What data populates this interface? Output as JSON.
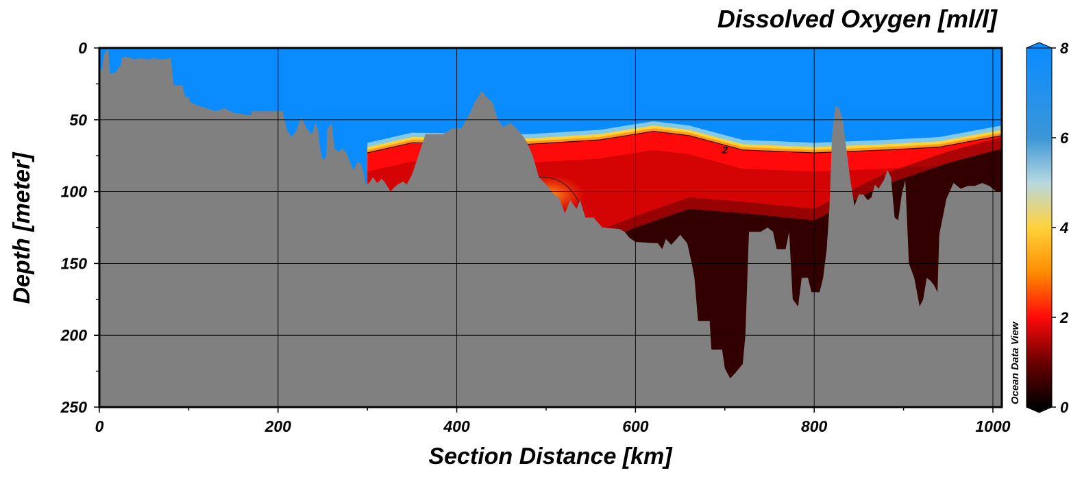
{
  "chart_data": {
    "type": "heatmap",
    "title": "Dissolved Oxygen [ml/l]",
    "xlabel": "Section Distance [km]",
    "ylabel": "Depth [meter]",
    "xlim": [
      0,
      1010
    ],
    "ylim": [
      250,
      0
    ],
    "x_ticks": [
      "0",
      "200",
      "400",
      "600",
      "800",
      "1000"
    ],
    "y_ticks": [
      "0",
      "50",
      "100",
      "150",
      "200",
      "250"
    ],
    "grid": true,
    "watermark": "Ocean Data View",
    "colorbar": {
      "range": [
        0,
        8
      ],
      "ticks": [
        "8",
        "6",
        "4",
        "2",
        "0"
      ],
      "stops": [
        {
          "value": 0,
          "color": "#000000"
        },
        {
          "value": 1,
          "color": "#6b0000"
        },
        {
          "value": 2,
          "color": "#ff0a0a"
        },
        {
          "value": 3,
          "color": "#ff8c00"
        },
        {
          "value": 4,
          "color": "#ffd23a"
        },
        {
          "value": 5,
          "color": "#b7d9e0"
        },
        {
          "value": 6,
          "color": "#3c96d8"
        },
        {
          "value": 8,
          "color": "#0a8cff"
        }
      ]
    },
    "contour_labels": [
      {
        "x": 700,
        "y": 71,
        "text": "2"
      }
    ],
    "layers": {
      "surface_oxygen_ml_l": 7.6,
      "oxycline_top_depth_m": [
        [
          300,
          72
        ],
        [
          350,
          65
        ],
        [
          480,
          66
        ],
        [
          560,
          63
        ],
        [
          620,
          57
        ],
        [
          660,
          60
        ],
        [
          720,
          70
        ],
        [
          800,
          72
        ],
        [
          880,
          70
        ],
        [
          940,
          68
        ],
        [
          1010,
          60
        ]
      ],
      "suboxic_top_depth_m": [
        [
          560,
          135
        ],
        [
          600,
          125
        ],
        [
          660,
          112
        ],
        [
          720,
          115
        ],
        [
          800,
          120
        ],
        [
          880,
          95
        ],
        [
          950,
          80
        ],
        [
          1010,
          70
        ]
      ]
    },
    "seafloor_depth_m": [
      [
        0,
        15
      ],
      [
        3,
        15
      ],
      [
        5,
        5
      ],
      [
        10,
        0
      ],
      [
        12,
        18
      ],
      [
        18,
        17
      ],
      [
        24,
        12
      ],
      [
        25,
        7
      ],
      [
        30,
        6
      ],
      [
        40,
        8
      ],
      [
        45,
        7
      ],
      [
        55,
        8
      ],
      [
        60,
        7
      ],
      [
        70,
        8
      ],
      [
        80,
        7
      ],
      [
        83,
        26
      ],
      [
        93,
        26
      ],
      [
        96,
        34
      ],
      [
        100,
        34
      ],
      [
        102,
        38
      ],
      [
        110,
        40
      ],
      [
        120,
        42
      ],
      [
        130,
        44
      ],
      [
        140,
        42
      ],
      [
        150,
        45
      ],
      [
        160,
        46
      ],
      [
        170,
        47
      ],
      [
        170,
        44
      ],
      [
        185,
        44
      ],
      [
        205,
        44
      ],
      [
        210,
        57
      ],
      [
        215,
        62
      ],
      [
        220,
        58
      ],
      [
        226,
        48
      ],
      [
        232,
        56
      ],
      [
        238,
        60
      ],
      [
        242,
        52
      ],
      [
        245,
        58
      ],
      [
        247,
        70
      ],
      [
        250,
        78
      ],
      [
        254,
        76
      ],
      [
        255,
        57
      ],
      [
        260,
        52
      ],
      [
        263,
        70
      ],
      [
        268,
        72
      ],
      [
        272,
        70
      ],
      [
        275,
        72
      ],
      [
        278,
        75
      ],
      [
        282,
        82
      ],
      [
        285,
        85
      ],
      [
        288,
        80
      ],
      [
        292,
        80
      ],
      [
        295,
        85
      ],
      [
        298,
        95
      ],
      [
        302,
        94
      ],
      [
        306,
        90
      ],
      [
        311,
        94
      ],
      [
        316,
        91
      ],
      [
        320,
        94
      ],
      [
        326,
        100
      ],
      [
        330,
        97
      ],
      [
        334,
        95
      ],
      [
        340,
        93
      ],
      [
        344,
        95
      ],
      [
        350,
        88
      ],
      [
        357,
        75
      ],
      [
        365,
        60
      ],
      [
        375,
        60
      ],
      [
        385,
        60
      ],
      [
        395,
        56
      ],
      [
        405,
        56
      ],
      [
        415,
        45
      ],
      [
        420,
        38
      ],
      [
        428,
        30
      ],
      [
        433,
        34
      ],
      [
        440,
        38
      ],
      [
        446,
        50
      ],
      [
        452,
        55
      ],
      [
        460,
        52
      ],
      [
        470,
        58
      ],
      [
        478,
        65
      ],
      [
        485,
        75
      ],
      [
        492,
        90
      ],
      [
        500,
        95
      ],
      [
        506,
        100
      ],
      [
        515,
        105
      ],
      [
        521,
        115
      ],
      [
        527,
        106
      ],
      [
        534,
        112
      ],
      [
        538,
        106
      ],
      [
        544,
        118
      ],
      [
        553,
        118
      ],
      [
        563,
        125
      ],
      [
        582,
        126
      ],
      [
        588,
        128
      ],
      [
        593,
        132
      ],
      [
        600,
        135
      ],
      [
        625,
        136
      ],
      [
        630,
        140
      ],
      [
        634,
        133
      ],
      [
        640,
        137
      ],
      [
        646,
        133
      ],
      [
        650,
        130
      ],
      [
        658,
        136
      ],
      [
        663,
        150
      ],
      [
        666,
        160
      ],
      [
        670,
        190
      ],
      [
        683,
        190
      ],
      [
        685,
        210
      ],
      [
        697,
        210
      ],
      [
        700,
        223
      ],
      [
        706,
        230
      ],
      [
        712,
        226
      ],
      [
        720,
        220
      ],
      [
        723,
        200
      ],
      [
        727,
        128
      ],
      [
        740,
        128
      ],
      [
        748,
        125
      ],
      [
        754,
        128
      ],
      [
        758,
        140
      ],
      [
        768,
        140
      ],
      [
        772,
        128
      ],
      [
        776,
        175
      ],
      [
        782,
        180
      ],
      [
        786,
        160
      ],
      [
        793,
        160
      ],
      [
        797,
        170
      ],
      [
        806,
        170
      ],
      [
        810,
        160
      ],
      [
        814,
        140
      ],
      [
        817,
        112
      ],
      [
        820,
        60
      ],
      [
        824,
        40
      ],
      [
        828,
        42
      ],
      [
        832,
        50
      ],
      [
        836,
        70
      ],
      [
        840,
        90
      ],
      [
        845,
        110
      ],
      [
        850,
        102
      ],
      [
        855,
        102
      ],
      [
        860,
        106
      ],
      [
        864,
        104
      ],
      [
        868,
        95
      ],
      [
        872,
        98
      ],
      [
        878,
        92
      ],
      [
        882,
        85
      ],
      [
        886,
        90
      ],
      [
        890,
        118
      ],
      [
        894,
        120
      ],
      [
        898,
        102
      ],
      [
        902,
        92
      ],
      [
        906,
        150
      ],
      [
        912,
        160
      ],
      [
        918,
        180
      ],
      [
        922,
        175
      ],
      [
        926,
        160
      ],
      [
        930,
        162
      ],
      [
        934,
        165
      ],
      [
        938,
        170
      ],
      [
        940,
        130
      ],
      [
        948,
        105
      ],
      [
        956,
        94
      ],
      [
        964,
        98
      ],
      [
        972,
        96
      ],
      [
        980,
        96
      ],
      [
        988,
        94
      ],
      [
        996,
        96
      ],
      [
        1004,
        100
      ],
      [
        1010,
        100
      ]
    ]
  }
}
